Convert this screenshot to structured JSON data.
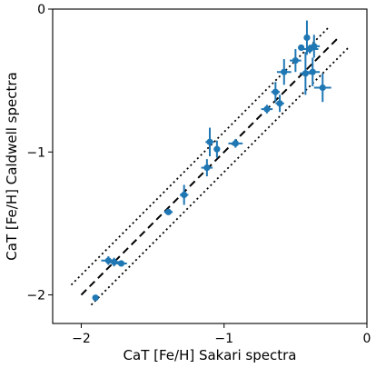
{
  "chart_data": {
    "type": "scatter",
    "xlabel": "CaT [Fe/H] Sakari spectra",
    "ylabel": "CaT [Fe/H] Caldwell spectra",
    "xlim": [
      -2.2,
      0.0
    ],
    "ylim": [
      -2.2,
      0.0
    ],
    "x_ticks": [
      -2,
      -1,
      0
    ],
    "y_ticks": [
      -2,
      -1,
      0
    ],
    "x_tick_labels": [
      "−2",
      "−1",
      "0"
    ],
    "y_tick_labels": [
      "−2",
      "−1",
      "0"
    ],
    "grid": false,
    "marker_color": "#1f77b4",
    "line_color": "#000000",
    "lines": [
      {
        "style": "dashed",
        "x": [
          -2.0,
          -0.2
        ],
        "y": [
          -2.0,
          -0.2
        ]
      },
      {
        "style": "dotted",
        "x": [
          -2.07,
          -0.27
        ],
        "y": [
          -1.93,
          -0.13
        ]
      },
      {
        "style": "dotted",
        "x": [
          -1.93,
          -0.13
        ],
        "y": [
          -2.07,
          -0.27
        ]
      }
    ],
    "points": [
      {
        "x": -1.9,
        "y": -2.02,
        "xerr": 0.0,
        "yerr": 0.0
      },
      {
        "x": -1.81,
        "y": -1.76,
        "xerr": 0.05,
        "yerr": 0.03
      },
      {
        "x": -1.77,
        "y": -1.77,
        "xerr": 0.04,
        "yerr": 0.03
      },
      {
        "x": -1.72,
        "y": -1.78,
        "xerr": 0.04,
        "yerr": 0.02
      },
      {
        "x": -1.39,
        "y": -1.42,
        "xerr": 0.03,
        "yerr": 0.02
      },
      {
        "x": -1.28,
        "y": -1.3,
        "xerr": 0.03,
        "yerr": 0.07
      },
      {
        "x": -1.12,
        "y": -1.11,
        "xerr": 0.04,
        "yerr": 0.06
      },
      {
        "x": -1.1,
        "y": -0.93,
        "xerr": 0.03,
        "yerr": 0.1
      },
      {
        "x": -1.05,
        "y": -0.98,
        "xerr": 0.02,
        "yerr": 0.06
      },
      {
        "x": -0.92,
        "y": -0.94,
        "xerr": 0.05,
        "yerr": 0.03
      },
      {
        "x": -0.7,
        "y": -0.7,
        "xerr": 0.04,
        "yerr": 0.03
      },
      {
        "x": -0.64,
        "y": -0.58,
        "xerr": 0.03,
        "yerr": 0.07
      },
      {
        "x": -0.61,
        "y": -0.66,
        "xerr": 0.03,
        "yerr": 0.06
      },
      {
        "x": -0.58,
        "y": -0.44,
        "xerr": 0.05,
        "yerr": 0.09
      },
      {
        "x": -0.5,
        "y": -0.36,
        "xerr": 0.04,
        "yerr": 0.08
      },
      {
        "x": -0.46,
        "y": -0.27,
        "xerr": 0.02,
        "yerr": 0.02
      },
      {
        "x": -0.43,
        "y": -0.45,
        "xerr": 0.04,
        "yerr": 0.15
      },
      {
        "x": -0.42,
        "y": -0.2,
        "xerr": 0.02,
        "yerr": 0.12
      },
      {
        "x": -0.4,
        "y": -0.28,
        "xerr": 0.06,
        "yerr": 0.03
      },
      {
        "x": -0.38,
        "y": -0.44,
        "xerr": 0.05,
        "yerr": 0.1
      },
      {
        "x": -0.37,
        "y": -0.26,
        "xerr": 0.04,
        "yerr": 0.08
      },
      {
        "x": -0.31,
        "y": -0.55,
        "xerr": 0.06,
        "yerr": 0.1
      }
    ]
  }
}
